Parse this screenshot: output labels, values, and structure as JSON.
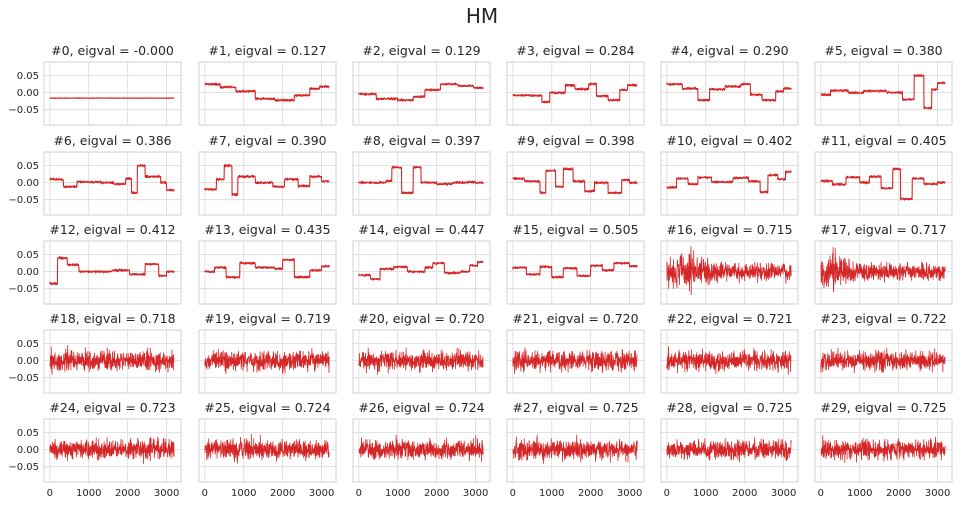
{
  "title": "HM",
  "colors": {
    "line": "#d62728",
    "grid": "#d9d9d9",
    "frame": "#cccccc",
    "text": "#262626"
  },
  "chart_data": {
    "type": "line",
    "layout": {
      "rows": 5,
      "cols": 6,
      "sharex": true,
      "sharey": true
    },
    "xlim": [
      -150,
      3370
    ],
    "ylim": [
      -0.095,
      0.09
    ],
    "grid": true,
    "x_ticks": [
      0,
      1000,
      2000,
      3000
    ],
    "x_tick_labels": [
      "0",
      "1000",
      "2000",
      "3000"
    ],
    "y_ticks": [
      0.05,
      0.0,
      -0.05
    ],
    "y_tick_labels": [
      "0.05",
      "0.00",
      "−0.05"
    ],
    "series_length": 3200,
    "subplots": [
      {
        "title": "#0, eigval = -0.000",
        "eigval": -0.0,
        "pattern": "constant",
        "level": -0.016
      },
      {
        "title": "#1, eigval = 0.127",
        "eigval": 0.127,
        "pattern": "steps",
        "steps": [
          [
            0,
            0.025
          ],
          [
            400,
            0.016
          ],
          [
            800,
            0.004
          ],
          [
            1300,
            -0.018
          ],
          [
            1800,
            -0.022
          ],
          [
            2300,
            -0.008
          ],
          [
            2700,
            0.012
          ],
          [
            2950,
            0.018
          ]
        ]
      },
      {
        "title": "#2, eigval = 0.129",
        "eigval": 0.129,
        "pattern": "steps",
        "steps": [
          [
            0,
            -0.004
          ],
          [
            450,
            -0.018
          ],
          [
            1000,
            -0.022
          ],
          [
            1400,
            -0.012
          ],
          [
            1700,
            0.008
          ],
          [
            2100,
            0.025
          ],
          [
            2550,
            0.02
          ],
          [
            2950,
            0.014
          ]
        ]
      },
      {
        "title": "#3, eigval = 0.284",
        "eigval": 0.284,
        "pattern": "steps",
        "steps": [
          [
            0,
            -0.008
          ],
          [
            750,
            -0.028
          ],
          [
            950,
            0.0
          ],
          [
            1350,
            0.022
          ],
          [
            1600,
            0.01
          ],
          [
            1950,
            0.025
          ],
          [
            2150,
            -0.01
          ],
          [
            2450,
            -0.022
          ],
          [
            2750,
            0.008
          ],
          [
            2950,
            0.022
          ]
        ]
      },
      {
        "title": "#4, eigval = 0.290",
        "eigval": 0.29,
        "pattern": "steps",
        "steps": [
          [
            0,
            0.025
          ],
          [
            400,
            0.012
          ],
          [
            800,
            -0.022
          ],
          [
            1100,
            0.01
          ],
          [
            1500,
            0.018
          ],
          [
            1900,
            0.025
          ],
          [
            2150,
            -0.006
          ],
          [
            2450,
            -0.022
          ],
          [
            2800,
            0.004
          ],
          [
            3000,
            0.012
          ]
        ]
      },
      {
        "title": "#5, eigval = 0.380",
        "eigval": 0.38,
        "pattern": "steps",
        "steps": [
          [
            0,
            -0.006
          ],
          [
            250,
            0.006
          ],
          [
            700,
            0.0
          ],
          [
            1100,
            0.005
          ],
          [
            1700,
            0.0
          ],
          [
            2100,
            -0.02
          ],
          [
            2400,
            0.05
          ],
          [
            2650,
            -0.045
          ],
          [
            2850,
            0.01
          ],
          [
            3000,
            0.028
          ]
        ]
      },
      {
        "title": "#6, eigval = 0.386",
        "eigval": 0.386,
        "pattern": "steps",
        "steps": [
          [
            0,
            0.01
          ],
          [
            350,
            -0.012
          ],
          [
            700,
            0.002
          ],
          [
            1300,
            0.0
          ],
          [
            1650,
            -0.004
          ],
          [
            1950,
            0.012
          ],
          [
            2100,
            -0.03
          ],
          [
            2250,
            0.05
          ],
          [
            2450,
            0.018
          ],
          [
            2850,
            0.0
          ],
          [
            3000,
            -0.022
          ]
        ]
      },
      {
        "title": "#7, eigval = 0.390",
        "eigval": 0.39,
        "pattern": "steps",
        "steps": [
          [
            0,
            -0.02
          ],
          [
            300,
            0.01
          ],
          [
            500,
            0.05
          ],
          [
            700,
            -0.035
          ],
          [
            850,
            0.018
          ],
          [
            1300,
            0.0
          ],
          [
            1750,
            -0.012
          ],
          [
            2050,
            0.01
          ],
          [
            2400,
            -0.01
          ],
          [
            2700,
            0.018
          ],
          [
            3000,
            0.004
          ]
        ]
      },
      {
        "title": "#8, eigval = 0.397",
        "eigval": 0.397,
        "pattern": "steps",
        "steps": [
          [
            0,
            0.0
          ],
          [
            700,
            0.005
          ],
          [
            850,
            0.045
          ],
          [
            1100,
            -0.03
          ],
          [
            1400,
            0.045
          ],
          [
            1600,
            0.0
          ],
          [
            2000,
            -0.004
          ],
          [
            2400,
            0.0
          ],
          [
            2800,
            0.002
          ],
          [
            3000,
            0.0
          ]
        ]
      },
      {
        "title": "#9, eigval = 0.398",
        "eigval": 0.398,
        "pattern": "steps",
        "steps": [
          [
            0,
            0.012
          ],
          [
            300,
            0.004
          ],
          [
            700,
            -0.03
          ],
          [
            850,
            0.035
          ],
          [
            1100,
            -0.012
          ],
          [
            1300,
            0.04
          ],
          [
            1550,
            0.004
          ],
          [
            1850,
            -0.025
          ],
          [
            2100,
            0.0
          ],
          [
            2450,
            -0.03
          ],
          [
            2800,
            0.008
          ],
          [
            3000,
            0.0
          ]
        ]
      },
      {
        "title": "#10, eigval = 0.402",
        "eigval": 0.402,
        "pattern": "steps",
        "steps": [
          [
            0,
            -0.014
          ],
          [
            250,
            0.012
          ],
          [
            550,
            -0.004
          ],
          [
            800,
            0.016
          ],
          [
            1150,
            0.002
          ],
          [
            1700,
            0.014
          ],
          [
            2100,
            0.004
          ],
          [
            2400,
            -0.028
          ],
          [
            2600,
            0.022
          ],
          [
            2850,
            0.01
          ],
          [
            3050,
            0.032
          ]
        ]
      },
      {
        "title": "#11, eigval = 0.405",
        "eigval": 0.405,
        "pattern": "steps",
        "steps": [
          [
            0,
            0.005
          ],
          [
            300,
            -0.005
          ],
          [
            650,
            0.016
          ],
          [
            1000,
            0.0
          ],
          [
            1250,
            0.018
          ],
          [
            1550,
            -0.016
          ],
          [
            1850,
            0.04
          ],
          [
            2050,
            -0.048
          ],
          [
            2350,
            0.012
          ],
          [
            2650,
            -0.004
          ],
          [
            3000,
            0.0
          ]
        ]
      },
      {
        "title": "#12, eigval = 0.412",
        "eigval": 0.412,
        "pattern": "steps",
        "steps": [
          [
            0,
            -0.035
          ],
          [
            200,
            0.04
          ],
          [
            450,
            0.02
          ],
          [
            750,
            0.0
          ],
          [
            1200,
            0.0
          ],
          [
            1600,
            0.004
          ],
          [
            2050,
            -0.008
          ],
          [
            2450,
            0.022
          ],
          [
            2800,
            -0.012
          ],
          [
            3000,
            0.0
          ]
        ]
      },
      {
        "title": "#13, eigval = 0.435",
        "eigval": 0.435,
        "pattern": "steps",
        "steps": [
          [
            0,
            0.0
          ],
          [
            250,
            0.012
          ],
          [
            550,
            -0.016
          ],
          [
            900,
            0.025
          ],
          [
            1300,
            0.012
          ],
          [
            1800,
            0.008
          ],
          [
            2000,
            0.035
          ],
          [
            2300,
            -0.016
          ],
          [
            2700,
            0.004
          ],
          [
            3000,
            0.016
          ]
        ]
      },
      {
        "title": "#14, eigval = 0.447",
        "eigval": 0.447,
        "pattern": "steps",
        "steps": [
          [
            0,
            -0.01
          ],
          [
            300,
            -0.022
          ],
          [
            550,
            0.008
          ],
          [
            900,
            0.014
          ],
          [
            1250,
            0.0
          ],
          [
            1700,
            0.012
          ],
          [
            1900,
            0.025
          ],
          [
            2200,
            -0.004
          ],
          [
            2600,
            0.0
          ],
          [
            2850,
            0.018
          ],
          [
            3050,
            0.028
          ]
        ]
      },
      {
        "title": "#15, eigval = 0.505",
        "eigval": 0.505,
        "pattern": "steps",
        "steps": [
          [
            0,
            0.012
          ],
          [
            350,
            -0.008
          ],
          [
            700,
            0.014
          ],
          [
            1000,
            -0.016
          ],
          [
            1300,
            0.01
          ],
          [
            1650,
            -0.012
          ],
          [
            2000,
            0.018
          ],
          [
            2300,
            0.004
          ],
          [
            2600,
            0.025
          ],
          [
            3000,
            0.016
          ]
        ]
      },
      {
        "title": "#16, eigval = 0.715",
        "eigval": 0.715,
        "pattern": "noise",
        "amp": 0.022,
        "burst": [
          500,
          0.055
        ]
      },
      {
        "title": "#17, eigval = 0.717",
        "eigval": 0.717,
        "pattern": "noise",
        "amp": 0.022,
        "burst": [
          300,
          0.05
        ]
      },
      {
        "title": "#18, eigval = 0.718",
        "eigval": 0.718,
        "pattern": "noise",
        "amp": 0.026
      },
      {
        "title": "#19, eigval = 0.719",
        "eigval": 0.719,
        "pattern": "noise",
        "amp": 0.026
      },
      {
        "title": "#20, eigval = 0.720",
        "eigval": 0.72,
        "pattern": "noise",
        "amp": 0.026
      },
      {
        "title": "#21, eigval = 0.720",
        "eigval": 0.72,
        "pattern": "noise",
        "amp": 0.026
      },
      {
        "title": "#22, eigval = 0.721",
        "eigval": 0.721,
        "pattern": "noise",
        "amp": 0.026
      },
      {
        "title": "#23, eigval = 0.722",
        "eigval": 0.722,
        "pattern": "noise",
        "amp": 0.026
      },
      {
        "title": "#24, eigval = 0.723",
        "eigval": 0.723,
        "pattern": "noise",
        "amp": 0.026
      },
      {
        "title": "#25, eigval = 0.724",
        "eigval": 0.724,
        "pattern": "noise",
        "amp": 0.027
      },
      {
        "title": "#26, eigval = 0.724",
        "eigval": 0.724,
        "pattern": "noise",
        "amp": 0.026
      },
      {
        "title": "#27, eigval = 0.725",
        "eigval": 0.725,
        "pattern": "noise",
        "amp": 0.026
      },
      {
        "title": "#28, eigval = 0.725",
        "eigval": 0.725,
        "pattern": "noise",
        "amp": 0.026
      },
      {
        "title": "#29, eigval = 0.725",
        "eigval": 0.725,
        "pattern": "noise",
        "amp": 0.026
      }
    ]
  }
}
